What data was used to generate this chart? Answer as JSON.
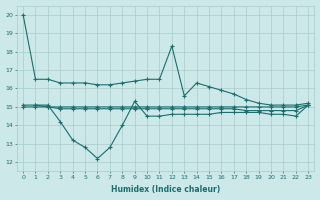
{
  "xlabel": "Humidex (Indice chaleur)",
  "background_color": "#cce8e8",
  "grid_color": "#aacccc",
  "line_color": "#1a6e6e",
  "xlim": [
    -0.5,
    23.5
  ],
  "ylim": [
    11.5,
    20.5
  ],
  "yticks": [
    12,
    13,
    14,
    15,
    16,
    17,
    18,
    19,
    20
  ],
  "xtick_labels": [
    "0",
    "1",
    "2",
    "3",
    "4",
    "5",
    "6",
    "7",
    "8",
    "9",
    "10",
    "11",
    "12",
    "13",
    "14",
    "15",
    "16",
    "17",
    "18",
    "19",
    "20",
    "21",
    "22",
    "23"
  ],
  "line1_x": [
    0,
    1,
    2,
    3,
    4,
    5,
    6,
    7,
    8,
    9,
    10,
    11,
    12,
    13,
    14,
    15,
    16,
    17,
    18,
    19,
    20,
    21,
    22,
    23
  ],
  "line1_y": [
    20.0,
    16.5,
    16.5,
    16.3,
    16.3,
    16.3,
    16.2,
    16.2,
    16.3,
    16.4,
    16.5,
    16.5,
    18.3,
    15.6,
    16.3,
    16.1,
    15.9,
    15.7,
    15.4,
    15.2,
    15.1,
    15.1,
    15.1,
    15.2
  ],
  "line2_x": [
    1,
    2,
    3,
    4,
    5,
    6,
    7,
    8,
    9,
    10,
    11,
    12,
    13,
    14,
    15,
    16,
    17,
    18,
    19,
    20,
    21,
    22,
    23
  ],
  "line2_y": [
    15.1,
    15.1,
    14.2,
    13.2,
    12.8,
    12.2,
    12.8,
    14.0,
    15.3,
    14.5,
    14.5,
    14.6,
    14.6,
    14.6,
    14.6,
    14.7,
    14.7,
    14.7,
    14.7,
    14.6,
    14.6,
    14.5,
    15.1
  ],
  "line3_x": [
    0,
    1,
    2,
    3,
    4,
    5,
    6,
    7,
    8,
    9,
    10,
    11,
    12,
    13,
    14,
    15,
    16,
    17,
    18,
    19,
    20,
    21,
    22,
    23
  ],
  "line3_y": [
    15.1,
    15.1,
    15.0,
    15.0,
    15.0,
    15.0,
    15.0,
    15.0,
    15.0,
    15.0,
    15.0,
    15.0,
    15.0,
    15.0,
    15.0,
    15.0,
    15.0,
    15.0,
    15.0,
    15.0,
    15.0,
    15.0,
    15.0,
    15.1
  ],
  "line4_x": [
    0,
    1,
    2,
    3,
    4,
    5,
    6,
    7,
    8,
    9,
    10,
    11,
    12,
    13,
    14,
    15,
    16,
    17,
    18,
    19,
    20,
    21,
    22,
    23
  ],
  "line4_y": [
    15.0,
    15.0,
    15.0,
    14.9,
    14.9,
    14.9,
    14.9,
    14.9,
    14.9,
    14.9,
    14.9,
    14.9,
    14.9,
    14.9,
    14.9,
    14.9,
    14.9,
    14.9,
    14.8,
    14.8,
    14.8,
    14.8,
    14.8,
    15.1
  ]
}
